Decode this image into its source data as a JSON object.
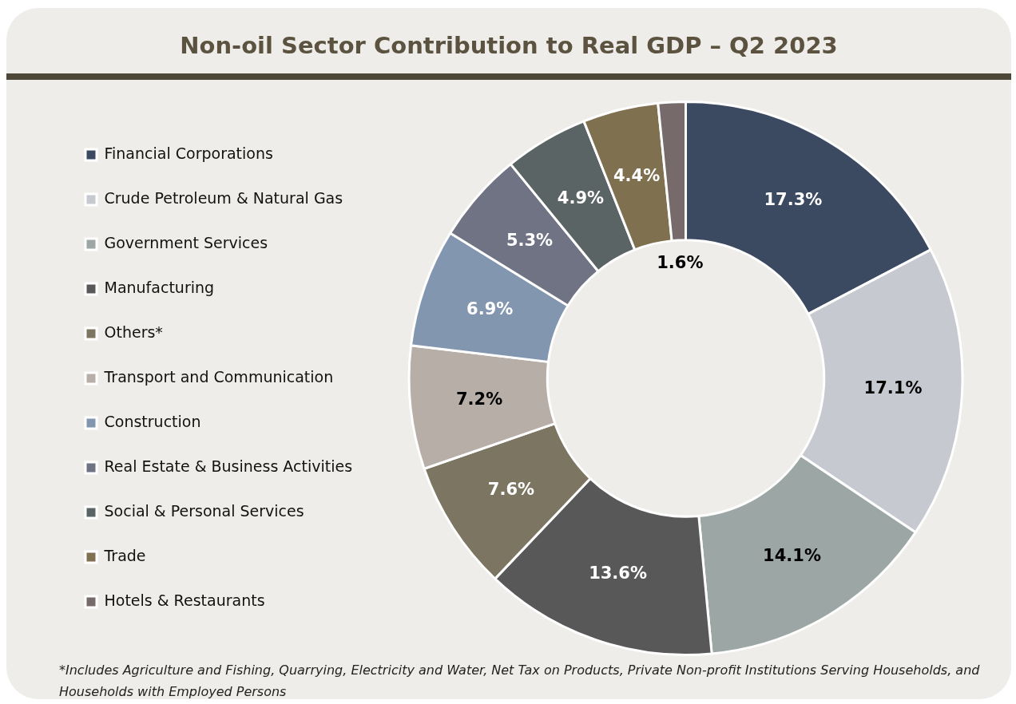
{
  "chart_data": {
    "type": "donut",
    "title": "Non-oil Sector Contribution to Real GDP – Q2 2023",
    "categories": [
      "Financial Corporations",
      "Crude Petroleum & Natural Gas",
      "Government Services",
      "Manufacturing",
      "Others*",
      "Transport and Communication",
      "Construction",
      "Real Estate & Business Activities",
      "Social & Personal Services",
      "Trade",
      "Hotels & Restaurants"
    ],
    "values": [
      17.3,
      17.1,
      14.1,
      13.6,
      7.6,
      7.2,
      6.9,
      5.3,
      4.9,
      4.4,
      1.6
    ],
    "value_labels": [
      "17.3%",
      "17.1%",
      "14.1%",
      "13.6%",
      "7.6%",
      "7.2%",
      "6.9%",
      "5.3%",
      "4.9%",
      "4.4%",
      "1.6%"
    ],
    "colors": [
      "#3b4a60",
      "#c7c9d1",
      "#9ca7a5",
      "#585858",
      "#7b7561",
      "#b7aea7",
      "#8296b0",
      "#6f7384",
      "#5a6464",
      "#7f7050",
      "#766a6a"
    ],
    "legend": "left",
    "annotations": [
      "*Includes Agriculture and Fishing, Quarrying, Electricity and Water, Net Tax on Products, Private Non-profit Institutions Serving Households, and Households with Employed Persons"
    ]
  }
}
